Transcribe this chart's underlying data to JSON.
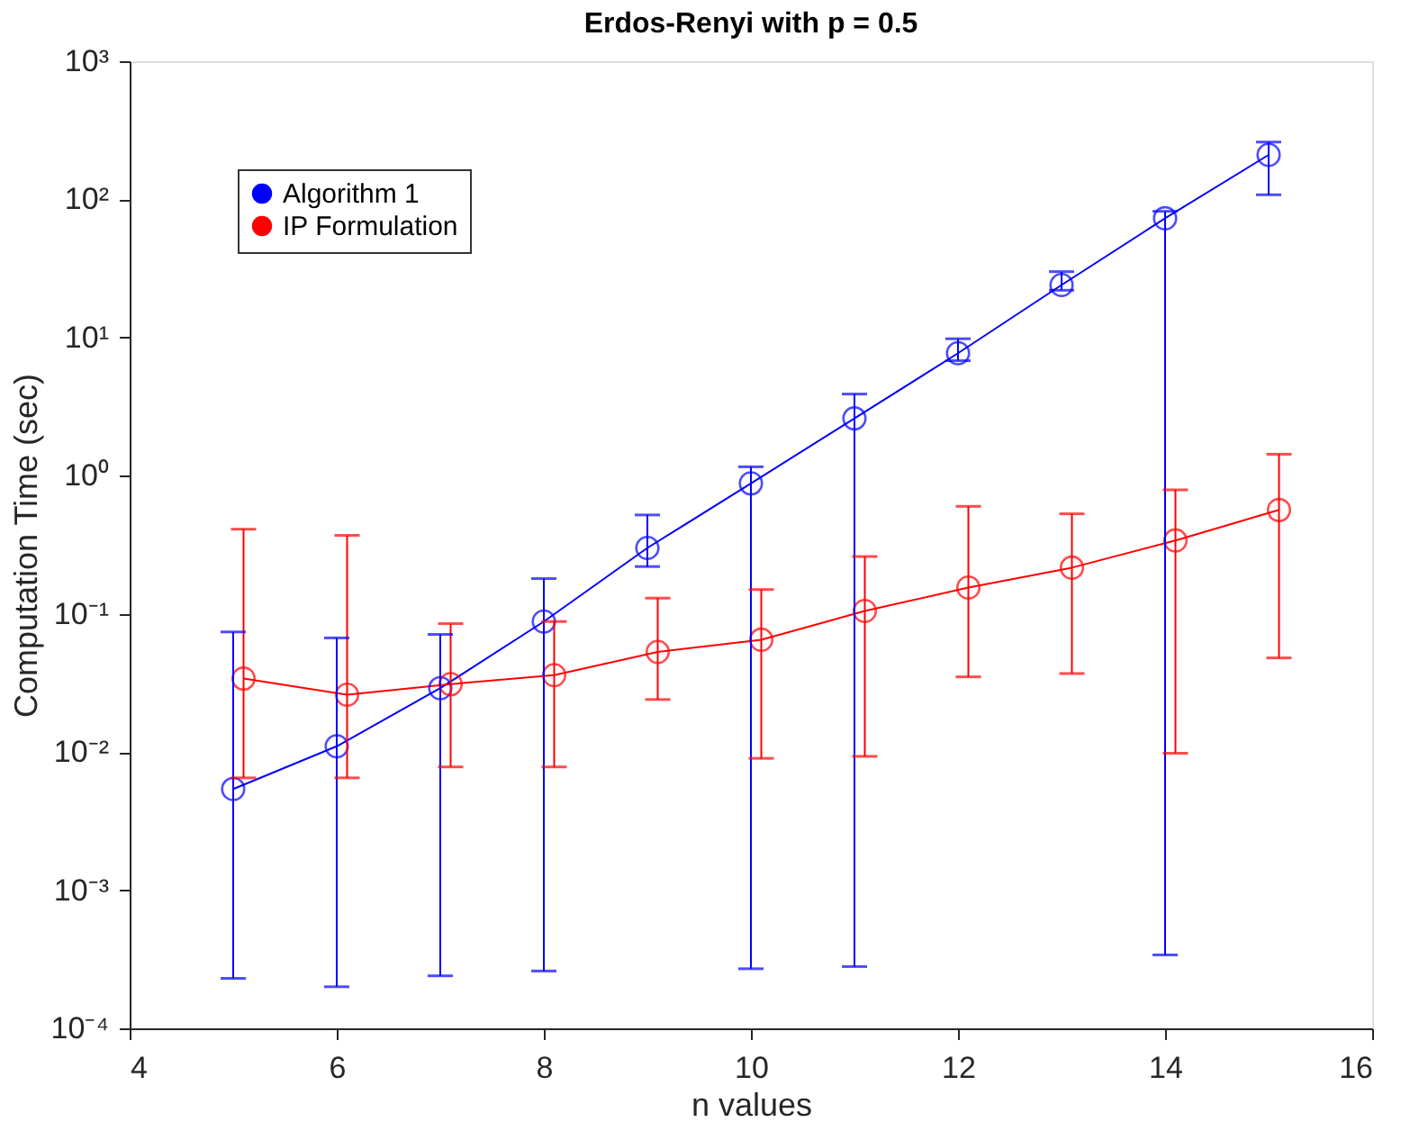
{
  "chart_data": {
    "type": "line",
    "title": "Erdos-Renyi with p =  0.5",
    "xlabel": "n values",
    "ylabel": "Computation Time (sec)",
    "log": "y",
    "grid": false,
    "legend": "top left",
    "marker": "circle",
    "line_style": "solid",
    "xlim": [
      4,
      16
    ],
    "xticks": [
      4,
      6,
      8,
      10,
      12,
      14,
      16
    ],
    "ylim": [
      0.0001,
      1000
    ],
    "yticks": [
      {
        "value": 0.0001,
        "label": "10⁻⁴"
      },
      {
        "value": 0.001,
        "label": "10⁻³"
      },
      {
        "value": 0.01,
        "label": "10⁻²"
      },
      {
        "value": 0.1,
        "label": "10⁻¹"
      },
      {
        "value": 1,
        "label": "10⁰"
      },
      {
        "value": 10,
        "label": "10¹"
      },
      {
        "value": 100,
        "label": "10²"
      },
      {
        "value": 1000,
        "label": "10³"
      }
    ],
    "series": [
      {
        "name": "Algorithm 1",
        "color": "#0000ff",
        "x": [
          5,
          6,
          7,
          8,
          9,
          10,
          11,
          12,
          13,
          14,
          15
        ],
        "values": [
          0.0054,
          0.011,
          0.029,
          0.088,
          0.3,
          0.88,
          2.6,
          7.7,
          24,
          73,
          210
        ],
        "errors": [
          [
            0.00023,
            0.074
          ],
          [
            0.0002,
            0.067
          ],
          [
            0.00024,
            0.071
          ],
          [
            0.00026,
            0.18
          ],
          [
            0.22,
            0.52
          ],
          [
            0.00027,
            1.16
          ],
          [
            0.00028,
            3.9
          ],
          [
            6.8,
            9.8
          ],
          [
            22,
            30
          ],
          [
            0.00034,
            82
          ],
          [
            108,
            260
          ]
        ]
      },
      {
        "name": "IP Formulation",
        "color": "#ff0000",
        "x": [
          5.1,
          6.1,
          7.1,
          8.1,
          9.1,
          10.1,
          11.1,
          12.1,
          13.1,
          14.1,
          15.1
        ],
        "values": [
          0.034,
          0.026,
          0.031,
          0.036,
          0.053,
          0.065,
          0.105,
          0.155,
          0.216,
          0.34,
          0.565
        ],
        "errors": [
          [
            0.0065,
            0.41
          ],
          [
            0.0065,
            0.37
          ],
          [
            0.0078,
            0.085
          ],
          [
            0.0078,
            0.088
          ],
          [
            0.024,
            0.13
          ],
          [
            0.009,
            0.15
          ],
          [
            0.0093,
            0.26
          ],
          [
            0.035,
            0.6
          ],
          [
            0.037,
            0.53
          ],
          [
            0.0098,
            0.79
          ],
          [
            0.048,
            1.43
          ]
        ]
      }
    ]
  }
}
